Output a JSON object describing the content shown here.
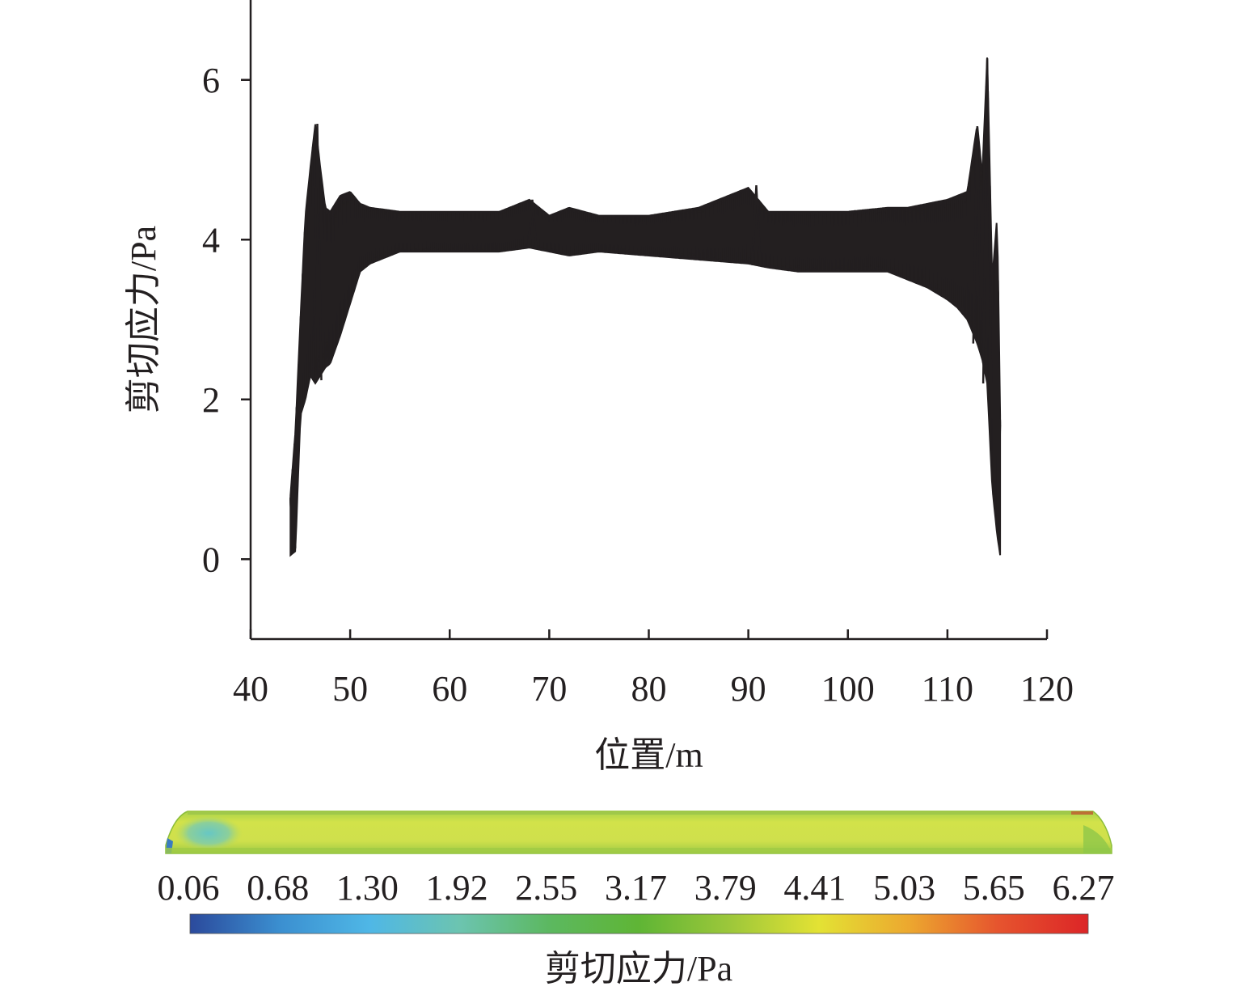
{
  "chart_data": {
    "type": "line",
    "xlabel": "位置/m",
    "ylabel": "剪切应力/Pa",
    "xlim": [
      40,
      120
    ],
    "ylim": [
      -1,
      7
    ],
    "x_ticks": [
      40,
      50,
      60,
      70,
      80,
      90,
      100,
      110,
      120
    ],
    "y_ticks": [
      0,
      2,
      4,
      6
    ],
    "grid": false,
    "series_count_note": "",
    "envelope": {
      "x": [
        44.0,
        44.5,
        45.0,
        45.5,
        46.0,
        46.5,
        47.0,
        47.5,
        48.0,
        49.0,
        50.0,
        51.0,
        52.0,
        55.0,
        60.0,
        65.0,
        68.0,
        70.0,
        72.0,
        75.0,
        80.0,
        85.0,
        90.0,
        92.0,
        95.0,
        100.0,
        104.0,
        106.0,
        108.0,
        110.0,
        111.0,
        112.0,
        113.0,
        113.5,
        114.0,
        114.5,
        115.0,
        115.3
      ],
      "upper": [
        0.8,
        1.6,
        3.0,
        4.3,
        4.9,
        5.45,
        4.9,
        4.4,
        4.35,
        4.55,
        4.6,
        4.45,
        4.4,
        4.35,
        4.35,
        4.35,
        4.5,
        4.3,
        4.4,
        4.3,
        4.3,
        4.4,
        4.65,
        4.35,
        4.35,
        4.35,
        4.4,
        4.4,
        4.45,
        4.5,
        4.55,
        4.6,
        5.45,
        4.8,
        6.3,
        3.5,
        4.3,
        1.8
      ],
      "lower": [
        0.05,
        0.1,
        1.8,
        2.0,
        2.3,
        2.2,
        2.3,
        2.4,
        2.45,
        2.8,
        3.2,
        3.6,
        3.7,
        3.85,
        3.85,
        3.85,
        3.9,
        3.85,
        3.8,
        3.85,
        3.8,
        3.75,
        3.7,
        3.65,
        3.6,
        3.6,
        3.6,
        3.5,
        3.4,
        3.25,
        3.15,
        3.0,
        2.7,
        2.5,
        2.2,
        0.9,
        0.3,
        0.05
      ]
    },
    "peaks": [
      {
        "x": 46.7,
        "y": 5.45
      },
      {
        "x": 68.3,
        "y": 4.5
      },
      {
        "x": 90.8,
        "y": 4.68
      },
      {
        "x": 113.0,
        "y": 5.42
      },
      {
        "x": 114.0,
        "y": 6.27
      }
    ]
  },
  "colorbar": {
    "labels": [
      "0.06",
      "0.68",
      "1.30",
      "1.92",
      "2.55",
      "3.17",
      "3.79",
      "4.41",
      "5.03",
      "5.65",
      "6.27"
    ],
    "title": "剪切应力/Pa",
    "colors": [
      "#2b4a9c",
      "#3b8fd0",
      "#4fb7e6",
      "#6cc4b0",
      "#5cb860",
      "#5fb535",
      "#9cc73a",
      "#e3e234",
      "#eca82f",
      "#e6542e",
      "#dc2527"
    ]
  },
  "contour": {
    "colors": {
      "body": "#c6e04a",
      "edge": "#8bc63f",
      "cold_spot": "#67c7c4",
      "blue_edge": "#3a7cc0",
      "red_edge": "#c84a2c"
    }
  }
}
